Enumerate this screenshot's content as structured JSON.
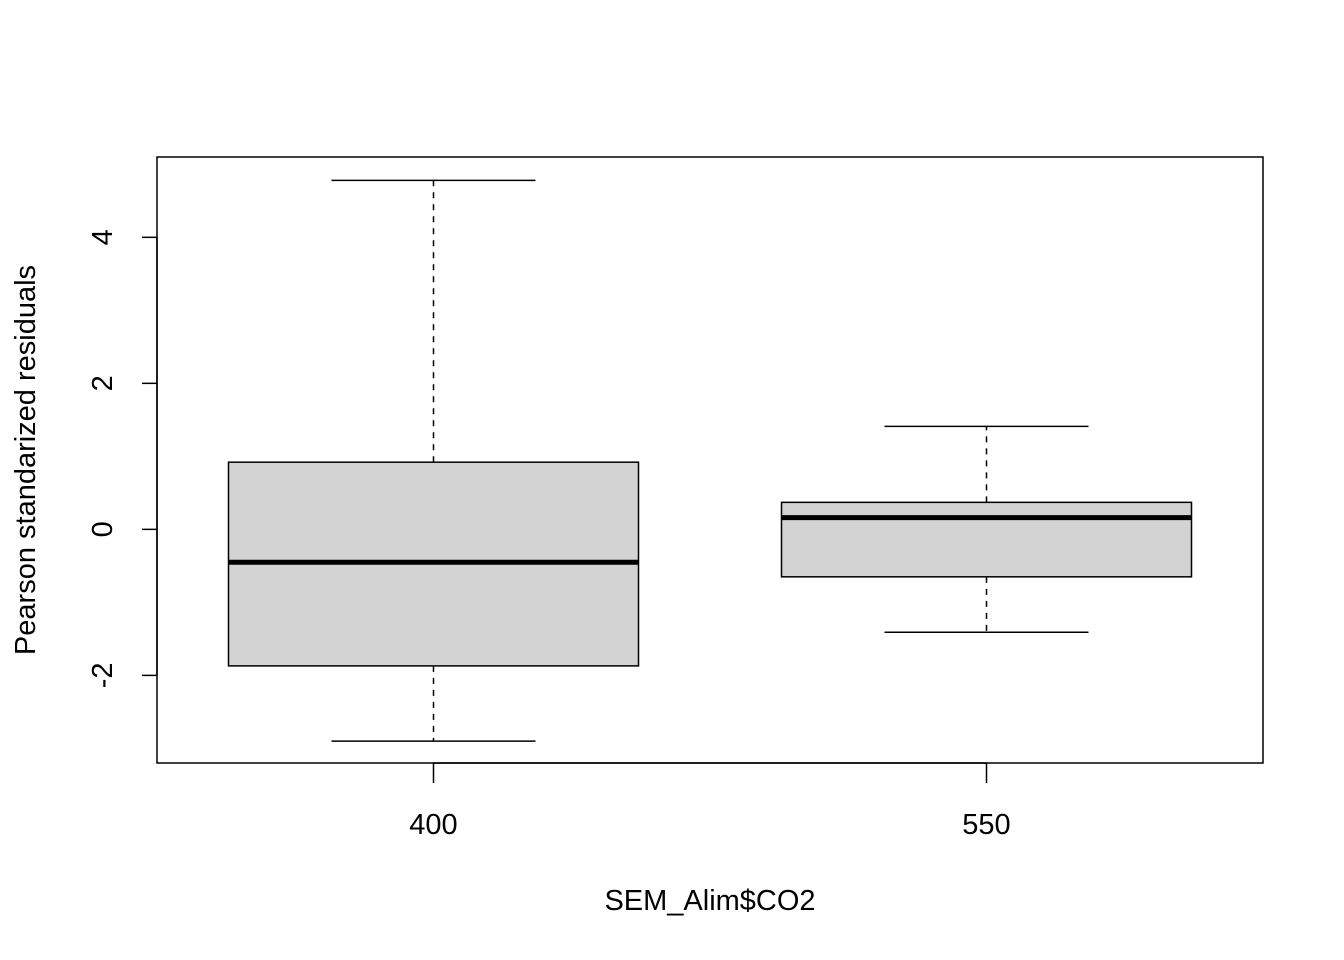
{
  "chart_data": {
    "type": "box",
    "title": "",
    "xlabel": "SEM_Alim$CO2",
    "ylabel": "Pearson standarized residuals",
    "ylim": [
      -3.2,
      5.1
    ],
    "y_ticks": [
      -2,
      0,
      2,
      4
    ],
    "y_tick_labels": [
      "-2",
      "0",
      "2",
      "4"
    ],
    "categories": [
      "400",
      "550"
    ],
    "boxes": [
      {
        "category": "400",
        "whisker_low": -2.9,
        "q1": -1.87,
        "median": -0.45,
        "q3": 0.92,
        "whisker_high": 4.78
      },
      {
        "category": "550",
        "whisker_low": -1.41,
        "q1": -0.65,
        "median": 0.16,
        "q3": 0.37,
        "whisker_high": 1.41
      }
    ],
    "box_fill": "#d3d3d3",
    "grid": false,
    "legend": "none"
  }
}
